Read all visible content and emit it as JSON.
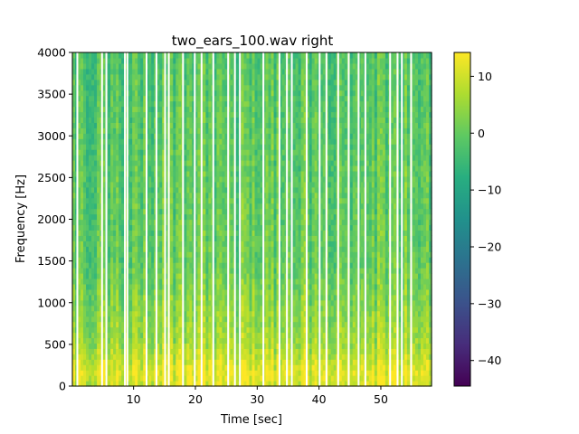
{
  "chart_data": {
    "type": "heatmap",
    "title": "two_ears_100.wav right",
    "xlabel": "Time [sec]",
    "ylabel": "Frequency [Hz]",
    "xlim": [
      0.1,
      58.2
    ],
    "ylim": [
      0,
      4000
    ],
    "x_ticks": [
      10,
      20,
      30,
      40,
      50
    ],
    "y_ticks": [
      0,
      500,
      1000,
      1500,
      2000,
      2500,
      3000,
      3500,
      4000
    ],
    "colormap": "viridis",
    "colorbar": {
      "range": [
        -44.5,
        14.2
      ],
      "ticks": [
        10,
        0,
        -10,
        -20,
        -30,
        -40
      ]
    },
    "gaps_sec": [
      0.9,
      4.9,
      5.6,
      8.6,
      9.0,
      12.1,
      13.7,
      15.1,
      15.7,
      18.0,
      19.9,
      21.0,
      22.9,
      25.3,
      26.4,
      27.2,
      31.0,
      33.6,
      34.8,
      35.6,
      38.0,
      40.1,
      41.2,
      43.1,
      44.8,
      46.4,
      47.5,
      51.5,
      52.7,
      53.4,
      54.9
    ],
    "band_levels": [
      {
        "freq_hz": 0,
        "level_db": 10
      },
      {
        "freq_hz": 150,
        "level_db": 12
      },
      {
        "freq_hz": 500,
        "level_db": 6
      },
      {
        "freq_hz": 1500,
        "level_db": 0
      },
      {
        "freq_hz": 4000,
        "level_db": -2
      }
    ]
  }
}
